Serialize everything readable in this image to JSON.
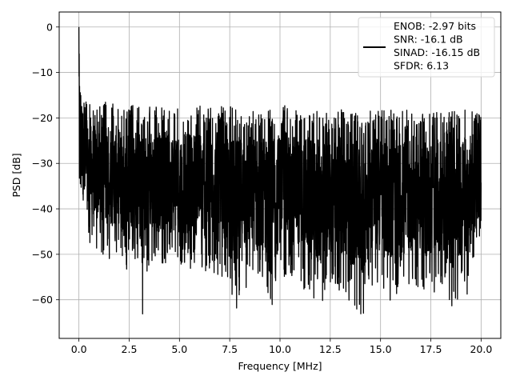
{
  "chart_data": {
    "type": "line",
    "title": "",
    "xlabel": "Frequency [MHz]",
    "ylabel": "PSD [dB]",
    "xlim": [
      -0.98,
      20.98
    ],
    "ylim": [
      -68.5,
      3.3
    ],
    "xticks": [
      0.0,
      2.5,
      5.0,
      7.5,
      10.0,
      12.5,
      15.0,
      17.5,
      20.0
    ],
    "xtick_labels": [
      "0.0",
      "2.5",
      "5.0",
      "7.5",
      "10.0",
      "12.5",
      "15.0",
      "17.5",
      "20.0"
    ],
    "yticks": [
      0,
      -10,
      -20,
      -30,
      -40,
      -50,
      -60
    ],
    "ytick_labels": [
      "0",
      "−10",
      "−20",
      "−30",
      "−40",
      "−50",
      "−60"
    ],
    "grid": true,
    "legend_position": "top-right",
    "series": [
      {
        "name": "ENOB: -2.97 bits\nSNR: -16.1 dB\nSINAD: -16.15 dB\nSFDR: 6.13",
        "color": "#000000",
        "x": [
          0.0,
          0.02,
          0.05,
          0.1,
          0.15,
          0.2,
          0.3,
          0.4,
          0.5,
          0.75,
          1.0,
          1.5,
          2.0,
          2.34,
          2.5,
          3.0,
          3.12,
          3.5,
          4.0,
          5.0,
          6.0,
          7.0,
          7.8,
          8.5,
          9.65,
          10.0,
          11.0,
          11.2,
          12.2,
          12.5,
          13.0,
          14.1,
          14.5,
          15.0,
          15.9,
          16.5,
          17.0,
          17.5,
          18.0,
          18.6,
          19.0,
          19.5,
          20.0
        ],
        "y_max": [
          0.0,
          -3.0,
          -6.0,
          -9.0,
          -12.0,
          -14.0,
          -15.0,
          -16.0,
          -16.5,
          -17.0,
          -17.0,
          -16.0,
          -17.0,
          -18.0,
          -17.0,
          -17.5,
          -17.0,
          -17.0,
          -17.5,
          -18.0,
          -17.0,
          -17.5,
          -17.5,
          -18.0,
          -18.0,
          -17.0,
          -18.0,
          -18.0,
          -18.5,
          -18.5,
          -18.0,
          -18.5,
          -18.5,
          -18.0,
          -18.5,
          -18.0,
          -18.5,
          -18.5,
          -19.0,
          -18.0,
          -18.0,
          -17.5,
          -19.0
        ],
        "y_min": [
          -7.0,
          -38.0,
          -37.0,
          -36.0,
          -38.0,
          -43.0,
          -52.0,
          -46.0,
          -48.0,
          -48.0,
          -50.0,
          -51.0,
          -50.0,
          -58.0,
          -50.0,
          -52.0,
          -65.0,
          -52.0,
          -52.0,
          -52.0,
          -54.0,
          -55.0,
          -63.0,
          -56.0,
          -64.0,
          -55.0,
          -56.0,
          -58.0,
          -62.0,
          -57.0,
          -58.0,
          -64.5,
          -57.0,
          -58.0,
          -62.0,
          -57.0,
          -58.0,
          -60.0,
          -58.0,
          -63.0,
          -60.0,
          -58.0,
          -44.0
        ]
      }
    ]
  }
}
